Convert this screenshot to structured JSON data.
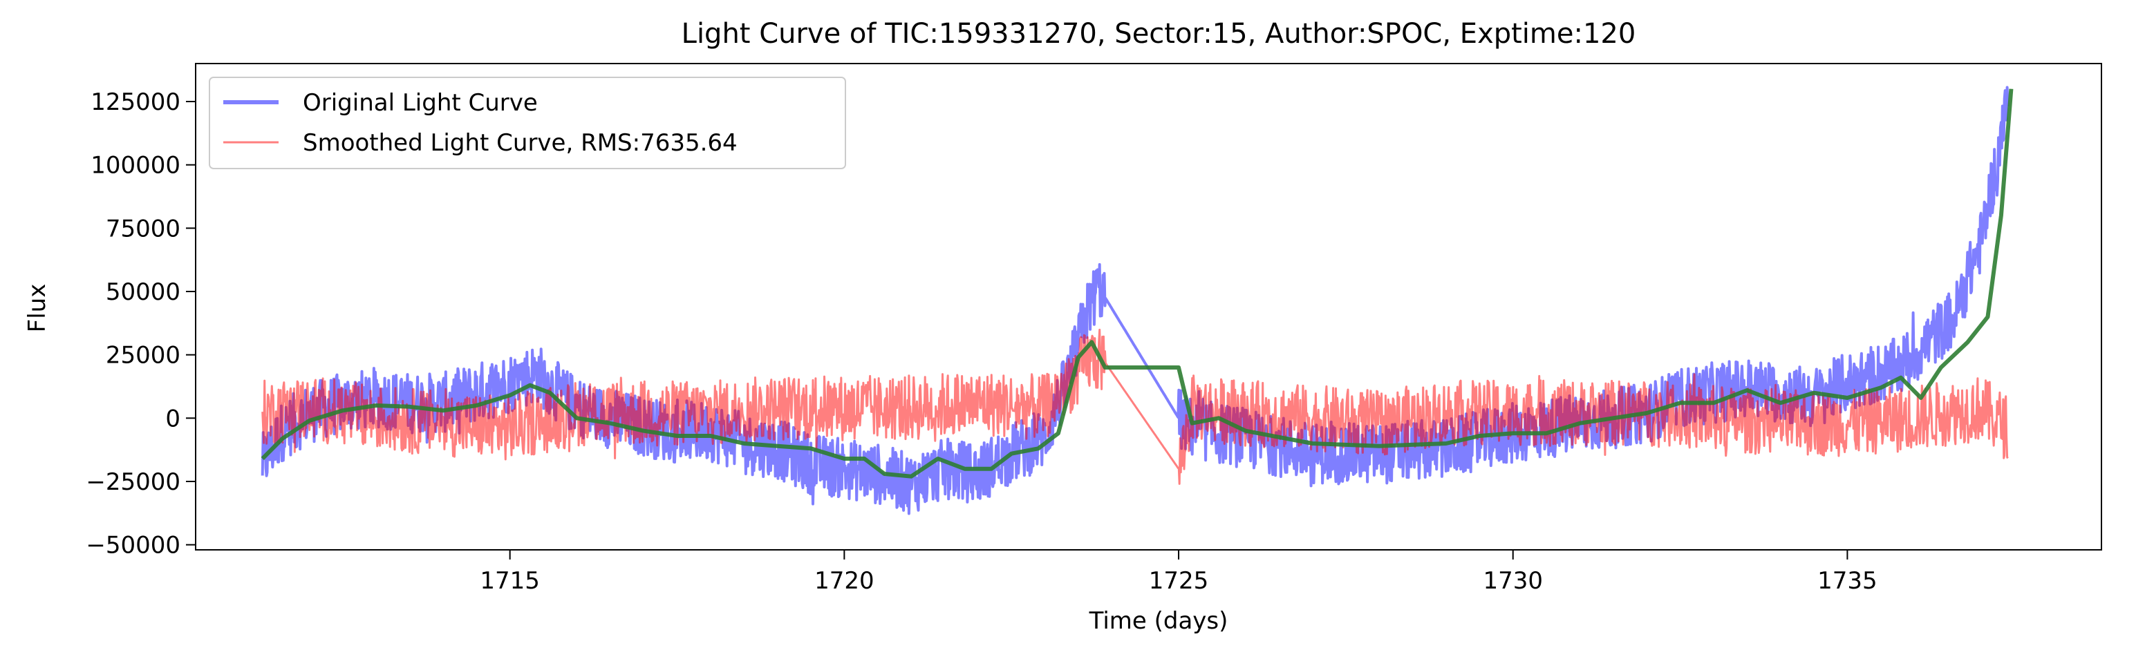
{
  "chart_data": {
    "type": "line",
    "title": "Light Curve of TIC:159331270, Sector:15, Author:SPOC, Exptime:120",
    "xlabel": "Time (days)",
    "ylabel": "Flux",
    "xlim": [
      1710.3,
      1738.8
    ],
    "ylim": [
      -52000,
      140000
    ],
    "xticks": [
      1715,
      1720,
      1725,
      1730,
      1735
    ],
    "yticks": [
      -50000,
      -25000,
      0,
      25000,
      50000,
      75000,
      100000,
      125000
    ],
    "ytick_labels": [
      "−50000",
      "−25000",
      "0",
      "25000",
      "50000",
      "75000",
      "100000",
      "125000"
    ],
    "grid": false,
    "legend_position": "top-left",
    "series": [
      {
        "name": "Original Light Curve",
        "color": "#0000ff",
        "opacity": 0.5,
        "noise_amplitude": 12000,
        "points": [
          [
            1711.3,
            -18000
          ],
          [
            1711.6,
            -5000
          ],
          [
            1712.0,
            2000
          ],
          [
            1712.5,
            6000
          ],
          [
            1713.0,
            8000
          ],
          [
            1713.5,
            6000
          ],
          [
            1714.0,
            6000
          ],
          [
            1714.5,
            10000
          ],
          [
            1715.0,
            14000
          ],
          [
            1715.4,
            18000
          ],
          [
            1715.8,
            8000
          ],
          [
            1716.2,
            2000
          ],
          [
            1716.8,
            -2000
          ],
          [
            1717.5,
            -6000
          ],
          [
            1718.0,
            -5000
          ],
          [
            1718.5,
            -10000
          ],
          [
            1719.0,
            -12000
          ],
          [
            1719.5,
            -18000
          ],
          [
            1720.0,
            -20000
          ],
          [
            1720.5,
            -22000
          ],
          [
            1721.0,
            -26000
          ],
          [
            1721.5,
            -20000
          ],
          [
            1722.0,
            -22000
          ],
          [
            1722.5,
            -14000
          ],
          [
            1723.0,
            -8000
          ],
          [
            1723.4,
            20000
          ],
          [
            1723.6,
            40000
          ],
          [
            1723.8,
            52000
          ],
          [
            1725.0,
            0
          ],
          [
            1725.2,
            -4000
          ],
          [
            1726.0,
            -8000
          ],
          [
            1727.0,
            -14000
          ],
          [
            1728.0,
            -14000
          ],
          [
            1729.0,
            -12000
          ],
          [
            1730.0,
            -6000
          ],
          [
            1731.0,
            -2000
          ],
          [
            1732.0,
            2000
          ],
          [
            1732.5,
            8000
          ],
          [
            1733.5,
            12000
          ],
          [
            1734.5,
            8000
          ],
          [
            1735.0,
            14000
          ],
          [
            1735.5,
            18000
          ],
          [
            1735.8,
            20000
          ],
          [
            1736.2,
            30000
          ],
          [
            1736.6,
            40000
          ],
          [
            1737.0,
            70000
          ],
          [
            1737.3,
            110000
          ],
          [
            1737.4,
            125000
          ]
        ]
      },
      {
        "name": "Smoothed Light Curve, RMS:7635.64",
        "color": "#ff0000",
        "opacity": 0.5,
        "noise_amplitude": 13000,
        "points": [
          [
            1711.3,
            2000
          ],
          [
            1712.0,
            4000
          ],
          [
            1713.0,
            0
          ],
          [
            1714.0,
            -2000
          ],
          [
            1715.0,
            -4000
          ],
          [
            1716.0,
            2000
          ],
          [
            1717.0,
            2000
          ],
          [
            1718.0,
            2000
          ],
          [
            1719.0,
            4000
          ],
          [
            1720.0,
            4000
          ],
          [
            1721.0,
            4000
          ],
          [
            1722.0,
            6000
          ],
          [
            1723.0,
            4000
          ],
          [
            1723.7,
            24000
          ],
          [
            1723.9,
            22000
          ],
          [
            1725.0,
            -20000
          ],
          [
            1725.2,
            4000
          ],
          [
            1726.0,
            2000
          ],
          [
            1727.0,
            0
          ],
          [
            1728.0,
            -2000
          ],
          [
            1729.0,
            2000
          ],
          [
            1730.0,
            2000
          ],
          [
            1731.0,
            2000
          ],
          [
            1732.0,
            2000
          ],
          [
            1733.0,
            0
          ],
          [
            1734.0,
            -2000
          ],
          [
            1735.0,
            -2000
          ],
          [
            1736.0,
            0
          ],
          [
            1737.0,
            4000
          ],
          [
            1737.4,
            -4000
          ]
        ]
      },
      {
        "name": "",
        "color": "#2e7d32",
        "opacity": 0.9,
        "noise_amplitude": 0,
        "points": [
          [
            1711.3,
            -16000
          ],
          [
            1711.6,
            -8000
          ],
          [
            1712.0,
            -1000
          ],
          [
            1712.5,
            3000
          ],
          [
            1713.0,
            5000
          ],
          [
            1713.5,
            4500
          ],
          [
            1714.0,
            3000
          ],
          [
            1714.5,
            5000
          ],
          [
            1715.0,
            9000
          ],
          [
            1715.3,
            13000
          ],
          [
            1715.6,
            10000
          ],
          [
            1716.0,
            0
          ],
          [
            1716.5,
            -2000
          ],
          [
            1717.0,
            -5000
          ],
          [
            1717.5,
            -7000
          ],
          [
            1718.0,
            -7000
          ],
          [
            1718.5,
            -10000
          ],
          [
            1719.0,
            -11000
          ],
          [
            1719.5,
            -12000
          ],
          [
            1720.0,
            -16000
          ],
          [
            1720.3,
            -16000
          ],
          [
            1720.6,
            -22000
          ],
          [
            1721.0,
            -23000
          ],
          [
            1721.4,
            -16000
          ],
          [
            1721.8,
            -20000
          ],
          [
            1722.2,
            -20000
          ],
          [
            1722.5,
            -14000
          ],
          [
            1722.9,
            -12000
          ],
          [
            1723.2,
            -6000
          ],
          [
            1723.5,
            24000
          ],
          [
            1723.7,
            30000
          ],
          [
            1723.9,
            20000
          ],
          [
            1725.0,
            20000
          ],
          [
            1725.2,
            -2000
          ],
          [
            1725.6,
            0
          ],
          [
            1726.0,
            -5000
          ],
          [
            1727.0,
            -10000
          ],
          [
            1728.0,
            -11000
          ],
          [
            1729.0,
            -10000
          ],
          [
            1729.5,
            -7000
          ],
          [
            1730.0,
            -6000
          ],
          [
            1730.5,
            -6000
          ],
          [
            1731.0,
            -2000
          ],
          [
            1731.5,
            0
          ],
          [
            1732.0,
            2000
          ],
          [
            1732.5,
            6000
          ],
          [
            1733.0,
            6000
          ],
          [
            1733.5,
            11000
          ],
          [
            1734.0,
            6000
          ],
          [
            1734.5,
            10000
          ],
          [
            1735.0,
            8000
          ],
          [
            1735.5,
            12000
          ],
          [
            1735.8,
            16000
          ],
          [
            1736.1,
            8000
          ],
          [
            1736.4,
            20000
          ],
          [
            1736.8,
            30000
          ],
          [
            1737.1,
            40000
          ],
          [
            1737.3,
            80000
          ],
          [
            1737.45,
            130000
          ]
        ]
      }
    ]
  }
}
